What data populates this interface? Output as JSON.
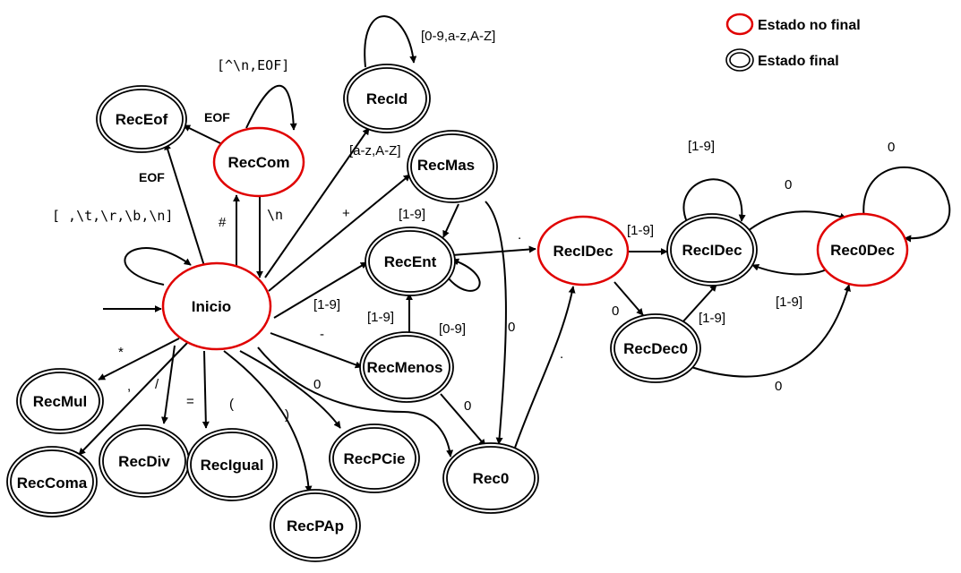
{
  "legend": {
    "nonfinal_label": "Estado no final",
    "final_label": "Estado final"
  },
  "colors": {
    "nonfinal_stroke": "#e00000",
    "final_stroke": "#000000",
    "edge": "#000000"
  },
  "states": {
    "inicio": {
      "label": "Inicio",
      "kind": "nonfinal"
    },
    "receof": {
      "label": "RecEof",
      "kind": "final"
    },
    "reccom": {
      "label": "RecCom",
      "kind": "nonfinal"
    },
    "recid": {
      "label": "RecId",
      "kind": "final"
    },
    "recmas": {
      "label": "RecMas",
      "kind": "final"
    },
    "recent": {
      "label": "RecEnt",
      "kind": "final"
    },
    "recmenos": {
      "label": "RecMenos",
      "kind": "final"
    },
    "rec0": {
      "label": "Rec0",
      "kind": "final"
    },
    "recidec_nf": {
      "label": "RecIDec",
      "kind": "nonfinal"
    },
    "recidec": {
      "label": "RecIDec",
      "kind": "final"
    },
    "rec0dec": {
      "label": "Rec0Dec",
      "kind": "nonfinal"
    },
    "recdec0": {
      "label": "RecDec0",
      "kind": "final"
    },
    "recmul": {
      "label": "RecMul",
      "kind": "final"
    },
    "reccoma": {
      "label": "RecComa",
      "kind": "final"
    },
    "recdiv": {
      "label": "RecDiv",
      "kind": "final"
    },
    "recigual": {
      "label": "RecIgual",
      "kind": "final"
    },
    "recpap": {
      "label": "RecPAp",
      "kind": "final"
    },
    "recpcie": {
      "label": "RecPCie",
      "kind": "final"
    }
  },
  "edges": {
    "inicio_self": "[ ,\\t,\\r,\\b,\\n]",
    "inicio_receof": "EOF",
    "reccom_receof": "EOF",
    "reccom_self": "[^\\n,EOF]",
    "inicio_reccom": "#",
    "reccom_inicio": "\\n",
    "inicio_recid": "[a-z,A-Z]",
    "recid_self": "[0-9,a-z,A-Z]",
    "inicio_recmas": "+",
    "recmas_recent": "[1-9]",
    "inicio_recent": "[1-9]",
    "recent_self": "[0-9]",
    "recmenos_recent": "[1-9]",
    "inicio_recmenos": "-",
    "recmas_rec0": "0",
    "recmenos_rec0": "0",
    "inicio_rec0": "0",
    "recent_recidec": ".",
    "rec0_recidec": ".",
    "recidecnf_recidec": "[1-9]",
    "recidecnf_recdec0": "0",
    "recidec_self": "[1-9]",
    "recidec_rec0dec": "0",
    "rec0dec_self": "0",
    "rec0dec_recidec": "[1-9]",
    "recdec0_recidec": "[1-9]",
    "recdec0_rec0dec": "0",
    "inicio_recmul": "*",
    "inicio_reccoma": ",",
    "inicio_recdiv": "/",
    "inicio_recigual": "=",
    "inicio_recpap": "(",
    "inicio_recpcie": ")"
  }
}
